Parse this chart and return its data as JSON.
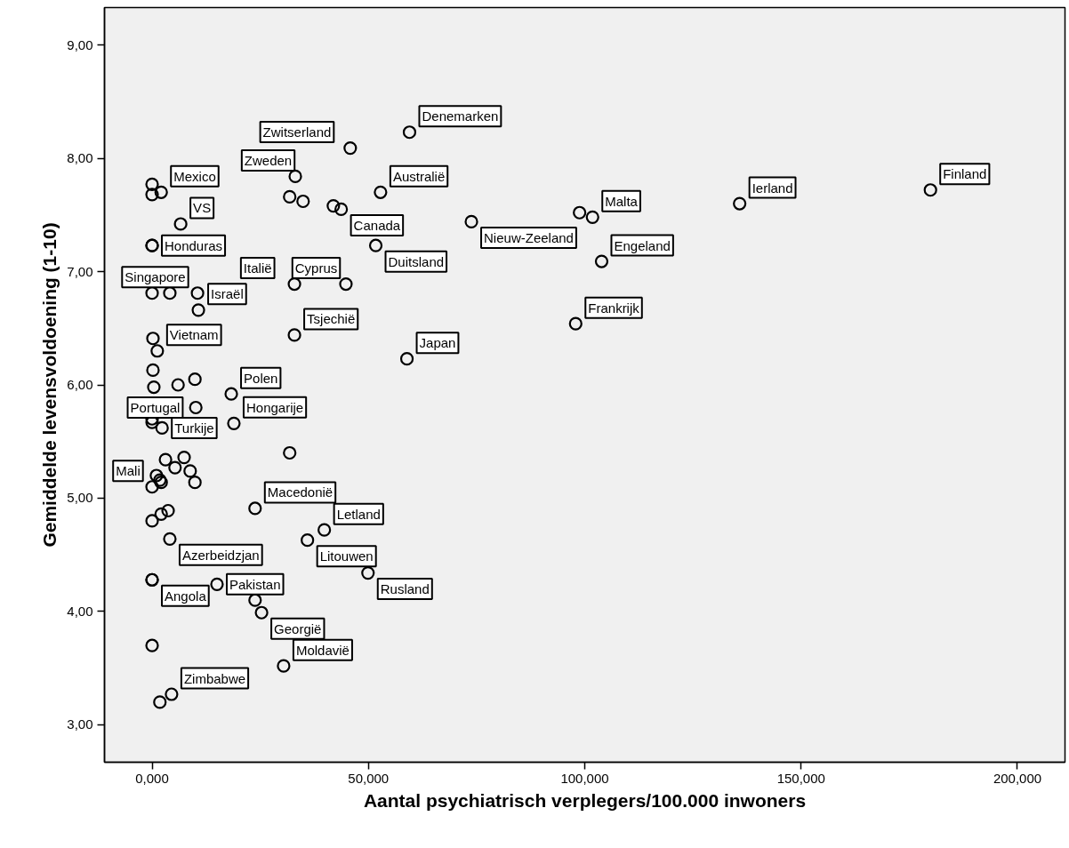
{
  "chart_data": {
    "type": "scatter",
    "xlabel": "Aantal psychiatrisch verplegers/100.000 inwoners",
    "ylabel": "Gemiddelde levensvoldoening (1-10)",
    "xlim": [
      -11,
      211
    ],
    "ylim": [
      2.67,
      9.33
    ],
    "xticks": [
      {
        "value": 0,
        "label": "0,000"
      },
      {
        "value": 50,
        "label": "50,000"
      },
      {
        "value": 100,
        "label": "100,000"
      },
      {
        "value": 150,
        "label": "150,000"
      },
      {
        "value": 200,
        "label": "200,000"
      }
    ],
    "yticks": [
      {
        "value": 3,
        "label": "3,00"
      },
      {
        "value": 4,
        "label": "4,00"
      },
      {
        "value": 5,
        "label": "5,00"
      },
      {
        "value": 6,
        "label": "6,00"
      },
      {
        "value": 7,
        "label": "7,00"
      },
      {
        "value": 8,
        "label": "8,00"
      },
      {
        "value": 9,
        "label": "9,00"
      }
    ],
    "grid": false,
    "marker": "circle",
    "series": [
      {
        "color": "#000000",
        "x": [
          59.5,
          45.8,
          33.1,
          31.8,
          34.9,
          41.9,
          43.7,
          52.8,
          51.7,
          73.8,
          44.8,
          32.9,
          10.5,
          10.7,
          0,
          4.1,
          32.9,
          58.9,
          18.3,
          18.9,
          2.1,
          0,
          0,
          6.6,
          0,
          0,
          0.2,
          1.2,
          0.2,
          0.4,
          6.0,
          9.9,
          10.1,
          0,
          0,
          2.3,
          3.1,
          5.3,
          7.4,
          8.8,
          9.9,
          1.0,
          1.8,
          2.1,
          0,
          0,
          2.1,
          3.7,
          23.8,
          31.8,
          4.1,
          35.9,
          39.8,
          0,
          0,
          15.0,
          23.8,
          25.3,
          0,
          30.4,
          4.5,
          1.8,
          49.9,
          101.8,
          98.8,
          135.8,
          179.9,
          103.9,
          97.9
        ],
        "values": [
          8.23,
          8.09,
          7.84,
          7.66,
          7.62,
          7.58,
          7.55,
          7.7,
          7.23,
          7.44,
          6.89,
          6.89,
          6.81,
          6.66,
          6.81,
          6.81,
          6.44,
          6.23,
          5.92,
          5.66,
          7.7,
          7.77,
          7.68,
          7.42,
          7.23,
          7.23,
          6.41,
          6.3,
          6.13,
          5.98,
          6.0,
          6.05,
          5.8,
          5.7,
          5.67,
          5.62,
          5.34,
          5.27,
          5.36,
          5.24,
          5.14,
          5.2,
          5.16,
          5.14,
          5.1,
          4.8,
          4.86,
          4.89,
          4.91,
          5.4,
          4.64,
          4.63,
          4.72,
          4.28,
          4.28,
          4.24,
          4.1,
          3.99,
          3.7,
          3.52,
          3.27,
          3.2,
          4.34,
          7.48,
          7.52,
          7.6,
          7.72,
          7.09,
          6.54
        ]
      }
    ],
    "annotations": [
      {
        "text": "Denemarken",
        "x": 59.5,
        "y": 8.23
      },
      {
        "text": "Zwitserland",
        "x": 45.8,
        "y": 8.09
      },
      {
        "text": "Zweden",
        "x": 33.1,
        "y": 7.84
      },
      {
        "text": "Canada",
        "x": 43.7,
        "y": 7.55
      },
      {
        "text": "Australië",
        "x": 52.8,
        "y": 7.7
      },
      {
        "text": "Duitsland",
        "x": 51.7,
        "y": 7.23
      },
      {
        "text": "Nieuw-Zeeland",
        "x": 73.8,
        "y": 7.44
      },
      {
        "text": "Cyprus",
        "x": 44.8,
        "y": 6.89
      },
      {
        "text": "Italië",
        "x": 32.9,
        "y": 6.89
      },
      {
        "text": "Singapore",
        "x": 10.5,
        "y": 6.81
      },
      {
        "text": "Israël",
        "x": 10.7,
        "y": 6.66
      },
      {
        "text": "Tsjechië",
        "x": 32.9,
        "y": 6.44
      },
      {
        "text": "Japan",
        "x": 58.9,
        "y": 6.23
      },
      {
        "text": "Polen",
        "x": 18.3,
        "y": 5.92
      },
      {
        "text": "Hongarije",
        "x": 18.9,
        "y": 5.66
      },
      {
        "text": "Mexico",
        "x": 2.1,
        "y": 7.7
      },
      {
        "text": "VS",
        "x": 6.6,
        "y": 7.42
      },
      {
        "text": "Honduras",
        "x": 0,
        "y": 7.23
      },
      {
        "text": "Vietnam",
        "x": 1.2,
        "y": 6.3
      },
      {
        "text": "Portugal",
        "x": 10.1,
        "y": 5.8
      },
      {
        "text": "Turkije",
        "x": 2.3,
        "y": 5.62
      },
      {
        "text": "Mali",
        "x": 0,
        "y": 5.1
      },
      {
        "text": "Macedonië",
        "x": 23.8,
        "y": 4.91
      },
      {
        "text": "Azerbeidzjan",
        "x": 4.1,
        "y": 4.64
      },
      {
        "text": "Litouwen",
        "x": 35.9,
        "y": 4.63
      },
      {
        "text": "Letland",
        "x": 39.8,
        "y": 4.72
      },
      {
        "text": "Angola",
        "x": 0,
        "y": 4.28
      },
      {
        "text": "Pakistan",
        "x": 15.0,
        "y": 4.24
      },
      {
        "text": "Georgië",
        "x": 25.3,
        "y": 3.99
      },
      {
        "text": "Moldavië",
        "x": 30.4,
        "y": 3.52
      },
      {
        "text": "Zimbabwe",
        "x": 4.5,
        "y": 3.27
      },
      {
        "text": "Rusland",
        "x": 49.9,
        "y": 4.34
      },
      {
        "text": "Malta",
        "x": 101.8,
        "y": 7.48
      },
      {
        "text": "Ierland",
        "x": 135.8,
        "y": 7.6
      },
      {
        "text": "Finland",
        "x": 179.9,
        "y": 7.72
      },
      {
        "text": "Engeland",
        "x": 103.9,
        "y": 7.09
      },
      {
        "text": "Frankrijk",
        "x": 97.9,
        "y": 6.54
      }
    ]
  }
}
